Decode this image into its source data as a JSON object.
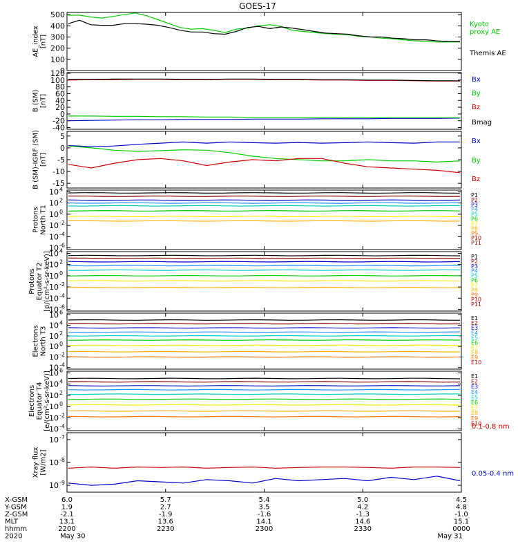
{
  "title": "GOES-17",
  "panels": [
    {
      "id": "ae",
      "ylabel": [
        "AE_index",
        "[nT]"
      ],
      "yticks": [
        "0",
        "100",
        "200",
        "300",
        "400",
        "500"
      ],
      "ylim": [
        0,
        520
      ],
      "legend": [
        {
          "text": "Kyoto",
          "color": "#00cc00"
        },
        {
          "text": "proxy AE",
          "color": "#00cc00"
        },
        {
          "text": "Themis AE",
          "color": "#000000"
        }
      ]
    },
    {
      "id": "bsm",
      "ylabel": [
        "B (SM)",
        "[nT]"
      ],
      "yticks": [
        "-40",
        "-20",
        "0",
        "20",
        "40",
        "60",
        "80",
        "100",
        "120"
      ],
      "ylim": [
        -45,
        122
      ],
      "legend": [
        {
          "text": "Bx",
          "color": "#0000cc"
        },
        {
          "text": "By",
          "color": "#00cc00"
        },
        {
          "text": "Bz",
          "color": "#cc0000"
        },
        {
          "text": "Bmag",
          "color": "#000000"
        }
      ]
    },
    {
      "id": "bigrf",
      "ylabel": [
        "B (SM)-IGRF (SM)",
        "[nT]"
      ],
      "yticks": [
        "-15",
        "-10",
        "-5",
        "0",
        "5"
      ],
      "ylim": [
        -17,
        7
      ],
      "legend": [
        {
          "text": "Bx",
          "color": "#0000cc"
        },
        {
          "text": "By",
          "color": "#00cc00"
        },
        {
          "text": "Bz",
          "color": "#cc0000"
        }
      ]
    },
    {
      "id": "pt1",
      "ylabel": [
        "Protons",
        "North T1"
      ],
      "ytickvals": [
        "10",
        "10",
        "10",
        "10",
        "10",
        "10"
      ],
      "ytickexps": [
        "-6",
        "-4",
        "-2",
        "0",
        "2",
        "4"
      ],
      "legend": [
        "P1",
        "P2",
        "P3",
        "P4",
        "P5",
        "P6",
        "P7",
        "P8",
        "P9",
        "P10",
        "P11"
      ]
    },
    {
      "id": "pt2",
      "ylabel": [
        "Protons",
        "Equator T2",
        "[p/(cm²-s-sr-keV)]"
      ],
      "ytickvals": [
        "10",
        "10",
        "10",
        "10",
        "10",
        "10"
      ],
      "ytickexps": [
        "-6",
        "-4",
        "-2",
        "0",
        "2",
        "4"
      ],
      "legend": [
        "P1",
        "P2",
        "P3",
        "P4",
        "P5",
        "P6",
        "P7",
        "P8",
        "P9",
        "P10",
        "P11"
      ]
    },
    {
      "id": "et3",
      "ylabel": [
        "Electrons",
        "North T3"
      ],
      "ytickvals": [
        "10",
        "10",
        "10",
        "10",
        "10",
        "10"
      ],
      "ytickexps": [
        "-4",
        "-2",
        "0",
        "2",
        "4",
        "6"
      ],
      "legend": [
        "E1",
        "E2",
        "E3",
        "E4",
        "E5",
        "E6",
        "E7",
        "E8",
        "E9",
        "E10"
      ]
    },
    {
      "id": "et4",
      "ylabel": [
        "Electrons",
        "Equator T4",
        "[e/(cm²-s-sr-keV)]"
      ],
      "ytickvals": [
        "10",
        "10",
        "10",
        "10",
        "10",
        "10"
      ],
      "ytickexps": [
        "-4",
        "-2",
        "0",
        "2",
        "4",
        "6"
      ],
      "legend": [
        "E1",
        "E2",
        "E3",
        "E4",
        "E5",
        "E6",
        "E7",
        "E8",
        "E9",
        "E10"
      ]
    },
    {
      "id": "xray",
      "ylabel": [
        "Xray flux",
        "[W/m2]"
      ],
      "ytickvals": [
        "10",
        "10",
        "10"
      ],
      "ytickexps": [
        "-9",
        "-8",
        "-7"
      ],
      "legend": [
        {
          "text": "0.1-0.8 nm",
          "color": "#cc0000"
        },
        {
          "text": "0.05-0.4 nm",
          "color": "#0000cc"
        }
      ]
    }
  ],
  "channel_colors": [
    "#000000",
    "#8b0000",
    "#0000cc",
    "#1e90ff",
    "#00cccc",
    "#00cc00",
    "#ffee00",
    "#ffb000",
    "#ff7000",
    "#cc0000",
    "#990000"
  ],
  "footer": {
    "labels": [
      "X-GSM",
      "Y-GSM",
      "Z-GSM",
      "MLT",
      "hhmm",
      "2020"
    ],
    "columns": [
      {
        "values": [
          "6.0",
          "1.9",
          "-2.1",
          "13.1",
          "2200",
          "May 30"
        ]
      },
      {
        "values": [
          "5.7",
          "2.7",
          "-1.9",
          "13.6",
          "2230",
          ""
        ]
      },
      {
        "values": [
          "5.4",
          "3.5",
          "-1.6",
          "14.1",
          "2300",
          ""
        ]
      },
      {
        "values": [
          "5.0",
          "4.2",
          "-1.3",
          "14.6",
          "2330",
          ""
        ]
      },
      {
        "values": [
          "4.5",
          "4.8",
          "-1.0",
          "15.1",
          "0000",
          "May 31"
        ]
      }
    ]
  },
  "chart_data": {
    "type": "line",
    "x_time": [
      "2200",
      "2230",
      "2300",
      "2330",
      "0000"
    ],
    "ae": {
      "kyoto_proxy_ae": [
        495,
        495,
        480,
        470,
        485,
        500,
        515,
        490,
        455,
        420,
        385,
        370,
        375,
        360,
        340,
        370,
        380,
        400,
        410,
        395,
        360,
        350,
        340,
        330,
        325,
        320,
        305,
        300,
        290,
        285,
        275,
        265,
        260,
        255,
        255,
        255
      ],
      "themis_ae": [
        420,
        450,
        410,
        405,
        405,
        420,
        420,
        415,
        405,
        385,
        360,
        345,
        345,
        330,
        325,
        350,
        385,
        395,
        375,
        390,
        380,
        365,
        350,
        335,
        330,
        325,
        310,
        300,
        300,
        290,
        285,
        275,
        275,
        265,
        260,
        260
      ]
    },
    "b_sm": {
      "Bx": [
        -20,
        -19,
        -18,
        -17,
        -17,
        -16,
        -16,
        -16,
        -15,
        -15,
        -15,
        -14,
        -14,
        -14,
        -13,
        -13,
        -13,
        -12
      ],
      "By": [
        -6,
        -6,
        -7,
        -7,
        -8,
        -8,
        -9,
        -9,
        -10,
        -10,
        -10,
        -10,
        -11,
        -11,
        -11,
        -11,
        -11,
        -11
      ],
      "Bz": [
        100,
        101,
        101,
        102,
        102,
        101,
        101,
        102,
        102,
        101,
        101,
        100,
        100,
        99,
        99,
        98,
        97,
        97
      ],
      "Bmag": [
        102,
        102,
        103,
        103,
        103,
        102,
        102,
        103,
        103,
        102,
        102,
        101,
        101,
        100,
        100,
        99,
        98,
        98
      ]
    },
    "b_minus_igrf": {
      "Bx": [
        1.0,
        0.5,
        0.8,
        1.5,
        2.0,
        2.5,
        2.0,
        2.5,
        2.2,
        2.0,
        2.3,
        2.0,
        2.2,
        2.5,
        2.2,
        2.0,
        2.5,
        2.5
      ],
      "By": [
        0.8,
        0.0,
        -1.0,
        -1.5,
        -1.2,
        -0.8,
        -1.0,
        -2.0,
        -3.5,
        -4.5,
        -5.0,
        -5.5,
        -5.5,
        -5.0,
        -5.5,
        -5.5,
        -6.0,
        -5.5
      ],
      "Bz": [
        -7.0,
        -8.5,
        -6.5,
        -5.0,
        -4.5,
        -5.5,
        -7.5,
        -6.0,
        -5.0,
        -5.5,
        -4.5,
        -4.5,
        -6.5,
        -8.0,
        -8.5,
        -9.0,
        -9.5,
        -10.5
      ]
    },
    "protons_north_t1_log10": [
      3.8,
      3.2,
      2.5,
      2.0,
      1.5,
      0.6,
      -0.4,
      -1.2,
      null,
      null,
      null
    ],
    "protons_equator_t2_log10": [
      3.6,
      3.1,
      2.5,
      1.8,
      1.0,
      0.0,
      -0.9,
      -2.1,
      null,
      null,
      null
    ],
    "electrons_north_t3_log10": [
      5.0,
      4.3,
      3.5,
      2.7,
      2.0,
      1.2,
      0.2,
      -1.0,
      -2.0,
      null
    ],
    "electrons_equator_t4_log10": [
      5.0,
      4.4,
      3.7,
      3.0,
      2.2,
      1.3,
      0.3,
      -0.8,
      -1.8,
      null
    ],
    "xray_0.1-0.8nm_log10": [
      -8.25,
      -8.2,
      -8.25,
      -8.2,
      -8.22,
      -8.2,
      -8.25,
      -8.22,
      -8.2,
      -8.25,
      -8.22,
      -8.2,
      -8.2,
      -8.22,
      -8.25,
      -8.2,
      -8.2,
      -8.22
    ],
    "xray_0.05-0.4nm_log10": [
      -8.9,
      -9.0,
      -8.95,
      -8.8,
      -8.85,
      -8.9,
      -8.75,
      -8.8,
      -8.9,
      -8.7,
      -8.8,
      -8.75,
      -8.7,
      -8.8,
      -8.65,
      -8.75,
      -8.6,
      -8.8
    ]
  }
}
